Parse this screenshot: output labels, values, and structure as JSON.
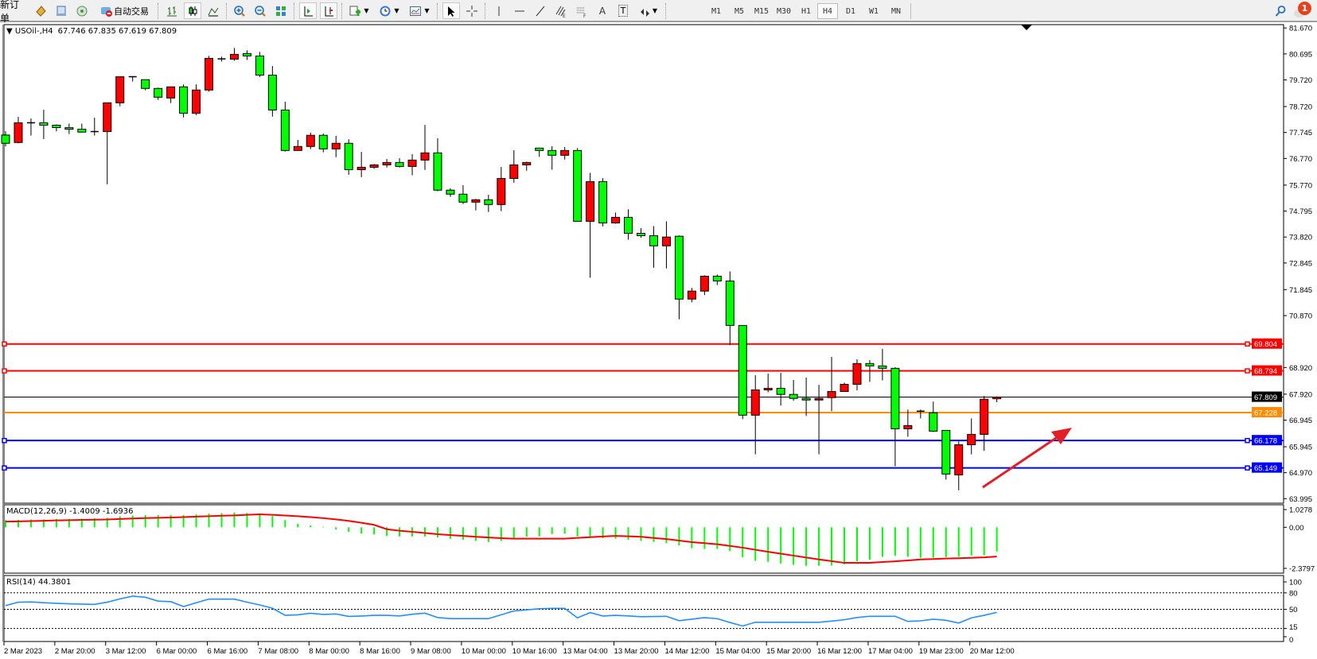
{
  "toolbar": {
    "new_order": "新订单",
    "auto_trading": "自动交易",
    "icons": [
      "new-order-icon",
      "metaeditor-icon",
      "market-watch-icon",
      "signals-icon",
      "auto-trading-icon",
      "bar-chart-icon",
      "candlestick-icon",
      "line-chart-icon",
      "zoom-in-icon",
      "zoom-out-icon",
      "tile-windows-icon",
      "auto-scroll-icon",
      "chart-shift-icon",
      "indicators-icon",
      "periods-icon",
      "templates-icon",
      "cursor-icon",
      "crosshair-icon",
      "vertical-line-icon",
      "horizontal-line-icon",
      "trendline-icon",
      "fibonacci-icon",
      "fibo-fan-icon",
      "text-icon",
      "text-label-icon",
      "arrows-icon"
    ],
    "text_tool": "A",
    "label_tool": "T",
    "timeframes": [
      "M1",
      "M5",
      "M15",
      "M30",
      "H1",
      "H4",
      "D1",
      "W1",
      "MN"
    ],
    "active_timeframe": "H4",
    "notifications_count": "1"
  },
  "chart": {
    "symbol": "USOil-,H4",
    "ohlc_header": "67.746 67.835 67.619 67.809",
    "price_ticks": [
      "81.670",
      "80.695",
      "79.720",
      "78.720",
      "77.745",
      "76.770",
      "75.770",
      "74.795",
      "73.820",
      "72.845",
      "71.845",
      "70.870",
      "68.920",
      "67.920",
      "66.945",
      "65.945",
      "64.970",
      "63.995"
    ],
    "levels": [
      {
        "price": 69.804,
        "label": "69.804",
        "color": "#ff0000",
        "kind": "hline"
      },
      {
        "price": 68.794,
        "label": "68.794",
        "color": "#ff0000",
        "kind": "hline"
      },
      {
        "price": 67.809,
        "label": "67.809",
        "color": "#000000",
        "kind": "bid"
      },
      {
        "price": 67.228,
        "label": "67.228",
        "color": "#ff8c00",
        "kind": "hline"
      },
      {
        "price": 66.178,
        "label": "66.178",
        "color": "#0000ff",
        "kind": "hline"
      },
      {
        "price": 65.149,
        "label": "65.149",
        "color": "#0000ff",
        "kind": "hline"
      }
    ],
    "bull_color": "#ff0000",
    "bear_color": "#00ff00",
    "time_labels": [
      "2 Mar 2023",
      "2 Mar 20:00",
      "3 Mar 12:00",
      "6 Mar 00:00",
      "6 Mar 16:00",
      "7 Mar 08:00",
      "8 Mar 00:00",
      "8 Mar 16:00",
      "9 Mar 08:00",
      "10 Mar 00:00",
      "10 Mar 16:00",
      "13 Mar 04:00",
      "13 Mar 20:00",
      "14 Mar 12:00",
      "15 Mar 04:00",
      "15 Mar 20:00",
      "16 Mar 12:00",
      "17 Mar 04:00",
      "19 Mar 23:00",
      "20 Mar 12:00"
    ]
  },
  "chart_data": {
    "type": "candlestick",
    "ylim": [
      63.995,
      81.67
    ],
    "candles_ohlc": [
      [
        77.65,
        77.79,
        77.22,
        77.34
      ],
      [
        77.37,
        78.33,
        77.34,
        78.11
      ],
      [
        78.11,
        78.27,
        77.63,
        78.11
      ],
      [
        78.11,
        78.6,
        77.5,
        78.02
      ],
      [
        78.02,
        78.05,
        77.79,
        77.93
      ],
      [
        77.93,
        78.08,
        77.69,
        77.87
      ],
      [
        77.87,
        78.08,
        77.76,
        77.76
      ],
      [
        77.78,
        78.3,
        77.63,
        77.78
      ],
      [
        77.78,
        78.86,
        75.8,
        78.86
      ],
      [
        78.86,
        79.84,
        78.73,
        79.84
      ],
      [
        79.84,
        79.84,
        79.66,
        79.84
      ],
      [
        79.73,
        79.73,
        79.33,
        79.4
      ],
      [
        79.4,
        79.43,
        78.97,
        79.07
      ],
      [
        79.04,
        79.46,
        78.85,
        79.46
      ],
      [
        79.46,
        79.55,
        78.31,
        78.47
      ],
      [
        78.47,
        79.55,
        78.4,
        79.34
      ],
      [
        79.34,
        80.62,
        79.28,
        80.53
      ],
      [
        80.51,
        80.59,
        80.41,
        80.51
      ],
      [
        80.5,
        80.92,
        80.44,
        80.68
      ],
      [
        80.71,
        80.83,
        80.47,
        80.62
      ],
      [
        80.62,
        80.77,
        79.83,
        79.9
      ],
      [
        79.9,
        80.24,
        78.34,
        78.59
      ],
      [
        78.59,
        78.9,
        77.03,
        77.07
      ],
      [
        77.07,
        77.47,
        77.07,
        77.22
      ],
      [
        77.22,
        77.74,
        77.12,
        77.64
      ],
      [
        77.64,
        77.71,
        77.0,
        77.13
      ],
      [
        77.13,
        77.62,
        76.82,
        77.34
      ],
      [
        77.34,
        77.49,
        76.16,
        76.35
      ],
      [
        76.35,
        77.02,
        76.07,
        76.44
      ],
      [
        76.44,
        76.56,
        76.38,
        76.53
      ],
      [
        76.53,
        76.75,
        76.43,
        76.62
      ],
      [
        76.62,
        76.78,
        76.43,
        76.47
      ],
      [
        76.47,
        76.93,
        76.14,
        76.71
      ],
      [
        76.71,
        78.03,
        76.34,
        76.98
      ],
      [
        76.98,
        77.53,
        75.54,
        75.58
      ],
      [
        75.58,
        75.65,
        75.33,
        75.43
      ],
      [
        75.43,
        75.77,
        75.06,
        75.13
      ],
      [
        75.13,
        75.25,
        74.82,
        75.22
      ],
      [
        75.22,
        75.41,
        74.76,
        75.04
      ],
      [
        75.04,
        76.45,
        74.79,
        76.02
      ],
      [
        76.02,
        77.08,
        75.86,
        76.53
      ],
      [
        76.53,
        76.65,
        76.31,
        76.62
      ],
      [
        77.16,
        77.16,
        76.83,
        77.07
      ],
      [
        77.07,
        77.23,
        76.35,
        76.89
      ],
      [
        76.89,
        77.2,
        76.73,
        77.07
      ],
      [
        77.07,
        77.16,
        74.41,
        74.41
      ],
      [
        74.41,
        76.23,
        72.29,
        75.9
      ],
      [
        75.9,
        76.03,
        74.22,
        74.35
      ],
      [
        74.35,
        74.74,
        74.32,
        74.56
      ],
      [
        74.56,
        74.86,
        73.72,
        73.96
      ],
      [
        73.96,
        74.15,
        73.79,
        73.87
      ],
      [
        73.87,
        74.23,
        72.67,
        73.49
      ],
      [
        73.49,
        74.41,
        72.64,
        73.82
      ],
      [
        73.85,
        73.88,
        70.73,
        71.49
      ],
      [
        71.49,
        71.91,
        71.37,
        71.79
      ],
      [
        71.79,
        72.38,
        71.64,
        72.35
      ],
      [
        72.35,
        72.41,
        72.02,
        72.17
      ],
      [
        72.17,
        72.53,
        69.76,
        70.5
      ],
      [
        70.5,
        70.5,
        66.98,
        67.13
      ],
      [
        67.13,
        68.63,
        65.66,
        68.08
      ],
      [
        68.08,
        68.69,
        67.99,
        68.14
      ],
      [
        68.14,
        68.72,
        67.49,
        67.91
      ],
      [
        67.91,
        68.45,
        67.67,
        67.76
      ],
      [
        67.76,
        68.54,
        67.1,
        67.7
      ],
      [
        67.7,
        68.27,
        65.66,
        67.76
      ],
      [
        67.79,
        69.32,
        67.28,
        68.02
      ],
      [
        68.02,
        68.35,
        68.02,
        68.29
      ],
      [
        68.29,
        69.23,
        68.06,
        69.07
      ],
      [
        69.07,
        69.2,
        68.38,
        68.98
      ],
      [
        68.98,
        69.62,
        68.44,
        68.89
      ],
      [
        68.89,
        68.93,
        65.21,
        66.62
      ],
      [
        66.62,
        67.34,
        66.32,
        66.74
      ],
      [
        67.28,
        67.34,
        67.01,
        67.28
      ],
      [
        67.22,
        67.64,
        66.5,
        66.53
      ],
      [
        66.56,
        66.56,
        64.71,
        64.92
      ],
      [
        64.89,
        66.14,
        64.31,
        66.02
      ],
      [
        66.02,
        67.01,
        65.66,
        66.41
      ],
      [
        66.41,
        67.85,
        65.79,
        67.73
      ],
      [
        67.746,
        67.835,
        67.619,
        67.809
      ]
    ],
    "macd": {
      "label": "MACD(12,26,9) -1.4009 -1.6936",
      "ticks": [
        "1.0278",
        "0.00",
        "-2.3797"
      ],
      "ylim": [
        -2.3797,
        1.0278
      ],
      "histogram_color": "#00ff00",
      "signal_color": "#ff0000",
      "histogram": [
        0.42,
        0.43,
        0.45,
        0.46,
        0.48,
        0.49,
        0.5,
        0.52,
        0.55,
        0.63,
        0.68,
        0.71,
        0.71,
        0.71,
        0.71,
        0.74,
        0.79,
        0.82,
        0.86,
        0.83,
        0.79,
        0.66,
        0.42,
        0.2,
        0.11,
        0.03,
        -0.13,
        -0.26,
        -0.37,
        -0.42,
        -0.5,
        -0.53,
        -0.53,
        -0.53,
        -0.59,
        -0.66,
        -0.72,
        -0.79,
        -0.85,
        -0.79,
        -0.68,
        -0.55,
        -0.53,
        -0.39,
        -0.37,
        -0.53,
        -0.55,
        -0.63,
        -0.66,
        -0.72,
        -0.79,
        -0.85,
        -0.92,
        -1.05,
        -1.21,
        -1.25,
        -1.25,
        -1.38,
        -1.73,
        -1.94,
        -2.0,
        -2.1,
        -2.17,
        -2.23,
        -2.23,
        -2.21,
        -2.14,
        -1.97,
        -1.87,
        -1.71,
        -1.64,
        -1.71,
        -1.77,
        -1.77,
        -1.73,
        -1.71,
        -1.64,
        -1.62,
        -1.4009
      ],
      "signal": [
        0.33,
        0.34,
        0.36,
        0.38,
        0.4,
        0.41,
        0.43,
        0.44,
        0.45,
        0.48,
        0.51,
        0.53,
        0.55,
        0.57,
        0.59,
        0.62,
        0.64,
        0.67,
        0.69,
        0.72,
        0.75,
        0.72,
        0.68,
        0.64,
        0.59,
        0.53,
        0.46,
        0.37,
        0.26,
        0.14,
        -0.11,
        -0.2,
        -0.26,
        -0.33,
        -0.4,
        -0.45,
        -0.5,
        -0.55,
        -0.59,
        -0.63,
        -0.66,
        -0.66,
        -0.66,
        -0.66,
        -0.66,
        -0.61,
        -0.57,
        -0.53,
        -0.5,
        -0.52,
        -0.55,
        -0.62,
        -0.68,
        -0.77,
        -0.86,
        -0.92,
        -0.98,
        -1.08,
        -1.18,
        -1.3,
        -1.42,
        -1.53,
        -1.64,
        -1.75,
        -1.86,
        -1.96,
        -2.06,
        -2.06,
        -2.06,
        -2.01,
        -1.97,
        -1.92,
        -1.86,
        -1.84,
        -1.81,
        -1.79,
        -1.77,
        -1.74,
        -1.6936
      ]
    },
    "rsi": {
      "label": "RSI(14) 44.3801",
      "ticks": [
        "100",
        "80",
        "50",
        "15",
        "0"
      ],
      "levels": [
        80,
        50,
        15
      ],
      "ylim": [
        0,
        100
      ],
      "color": "#1e90ff",
      "values": [
        56.8,
        63,
        63.5,
        62,
        61,
        60,
        59.5,
        59,
        63,
        69,
        74,
        72,
        65,
        64,
        55,
        62,
        68.6,
        68.6,
        68.6,
        63,
        58,
        52,
        39,
        40,
        42.8,
        40.7,
        41.6,
        37,
        37.8,
        39,
        39,
        38,
        41,
        43,
        35,
        33,
        33,
        33,
        33,
        40,
        47,
        49,
        51,
        51.7,
        51.7,
        34.4,
        44,
        37.8,
        39,
        38,
        36.5,
        36.8,
        37.3,
        29.3,
        32,
        34.8,
        33,
        26,
        19.6,
        26.4,
        26.4,
        26.4,
        26.4,
        26.4,
        26.4,
        28.5,
        31,
        35,
        37.3,
        37.3,
        37.3,
        28,
        29,
        31.9,
        30,
        25,
        34.4,
        39,
        44.3801
      ]
    }
  }
}
